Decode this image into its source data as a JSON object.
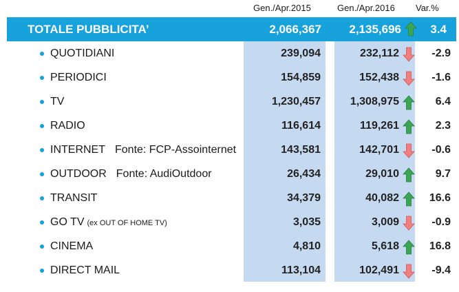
{
  "headers": {
    "col1": "Gen./Apr.2015",
    "col2": "Gen./Apr.2016",
    "col3": "Var.%"
  },
  "total": {
    "label": "TOTALE PUBBLICITA’",
    "v2015": "2,066,367",
    "v2016": "2,135,696",
    "trend": "up",
    "var": "3.4"
  },
  "colors": {
    "band": "#17a2dc",
    "column_bg": "#c5d9f1",
    "arrow_up": "#3aa655",
    "arrow_down": "#f08080"
  },
  "rows": [
    {
      "name": "QUOTIDIANI",
      "note": "",
      "small": "",
      "v2015": "239,094",
      "v2016": "232,112",
      "trend": "down",
      "var": "-2.9"
    },
    {
      "name": "PERIODICI",
      "note": "",
      "small": "",
      "v2015": "154,859",
      "v2016": "152,438",
      "trend": "down",
      "var": "-1.6"
    },
    {
      "name": "TV",
      "note": "",
      "small": "",
      "v2015": "1,230,457",
      "v2016": "1,308,975",
      "trend": "up",
      "var": "6.4"
    },
    {
      "name": "RADIO",
      "note": "",
      "small": "",
      "v2015": "116,614",
      "v2016": "119,261",
      "trend": "up",
      "var": "2.3"
    },
    {
      "name": "INTERNET",
      "note": "Fonte: FCP-Assointernet",
      "small": "",
      "v2015": "143,581",
      "v2016": "142,701",
      "trend": "down",
      "var": "-0.6"
    },
    {
      "name": "OUTDOOR",
      "note": "Fonte: AudiOutdoor",
      "small": "",
      "v2015": "26,434",
      "v2016": "29,010",
      "trend": "up",
      "var": "9.7"
    },
    {
      "name": "TRANSIT",
      "note": "",
      "small": "",
      "v2015": "34,379",
      "v2016": "40,082",
      "trend": "up",
      "var": "16.6"
    },
    {
      "name": "GO TV",
      "note": "",
      "small": "(ex OUT OF HOME TV)",
      "v2015": "3,035",
      "v2016": "3,009",
      "trend": "down",
      "var": "-0.9"
    },
    {
      "name": "CINEMA",
      "note": "",
      "small": "",
      "v2015": "4,810",
      "v2016": "5,618",
      "trend": "up",
      "var": "16.8"
    },
    {
      "name": "DIRECT MAIL",
      "note": "",
      "small": "",
      "v2015": "113,104",
      "v2016": "102,491",
      "trend": "down",
      "var": "-9.4"
    }
  ]
}
